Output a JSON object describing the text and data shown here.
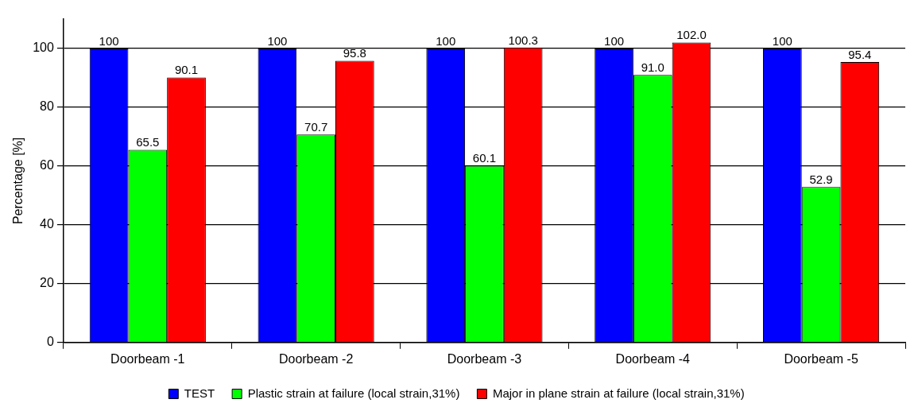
{
  "chart_data": {
    "type": "bar",
    "ylabel": "Percentage [%]",
    "categories": [
      "Doorbeam -1",
      "Doorbeam -2",
      "Doorbeam -3",
      "Doorbeam -4",
      "Doorbeam -5"
    ],
    "series": [
      {
        "name": "TEST",
        "color": "#0000ff",
        "values": [
          100,
          100,
          100,
          100,
          100
        ],
        "value_labels": [
          "100",
          "100",
          "100",
          "100",
          "100"
        ]
      },
      {
        "name": "Plastic strain at failure (local strain,31%)",
        "color": "#00ff00",
        "values": [
          65.5,
          70.7,
          60.1,
          91.0,
          52.9
        ],
        "value_labels": [
          "65.5",
          "70.7",
          "60.1",
          "91.0",
          "52.9"
        ]
      },
      {
        "name": "Major in plane strain at failure (local strain,31%)",
        "color": "#ff0000",
        "values": [
          90.1,
          95.8,
          100.3,
          102.0,
          95.4
        ],
        "value_labels": [
          "90.1",
          "95.8",
          "100.3",
          "102.0",
          "95.4"
        ]
      }
    ],
    "ylim": [
      0,
      110
    ],
    "yticks": [
      0,
      20,
      40,
      60,
      80,
      100
    ],
    "grid": "y",
    "legend": "bottom"
  }
}
